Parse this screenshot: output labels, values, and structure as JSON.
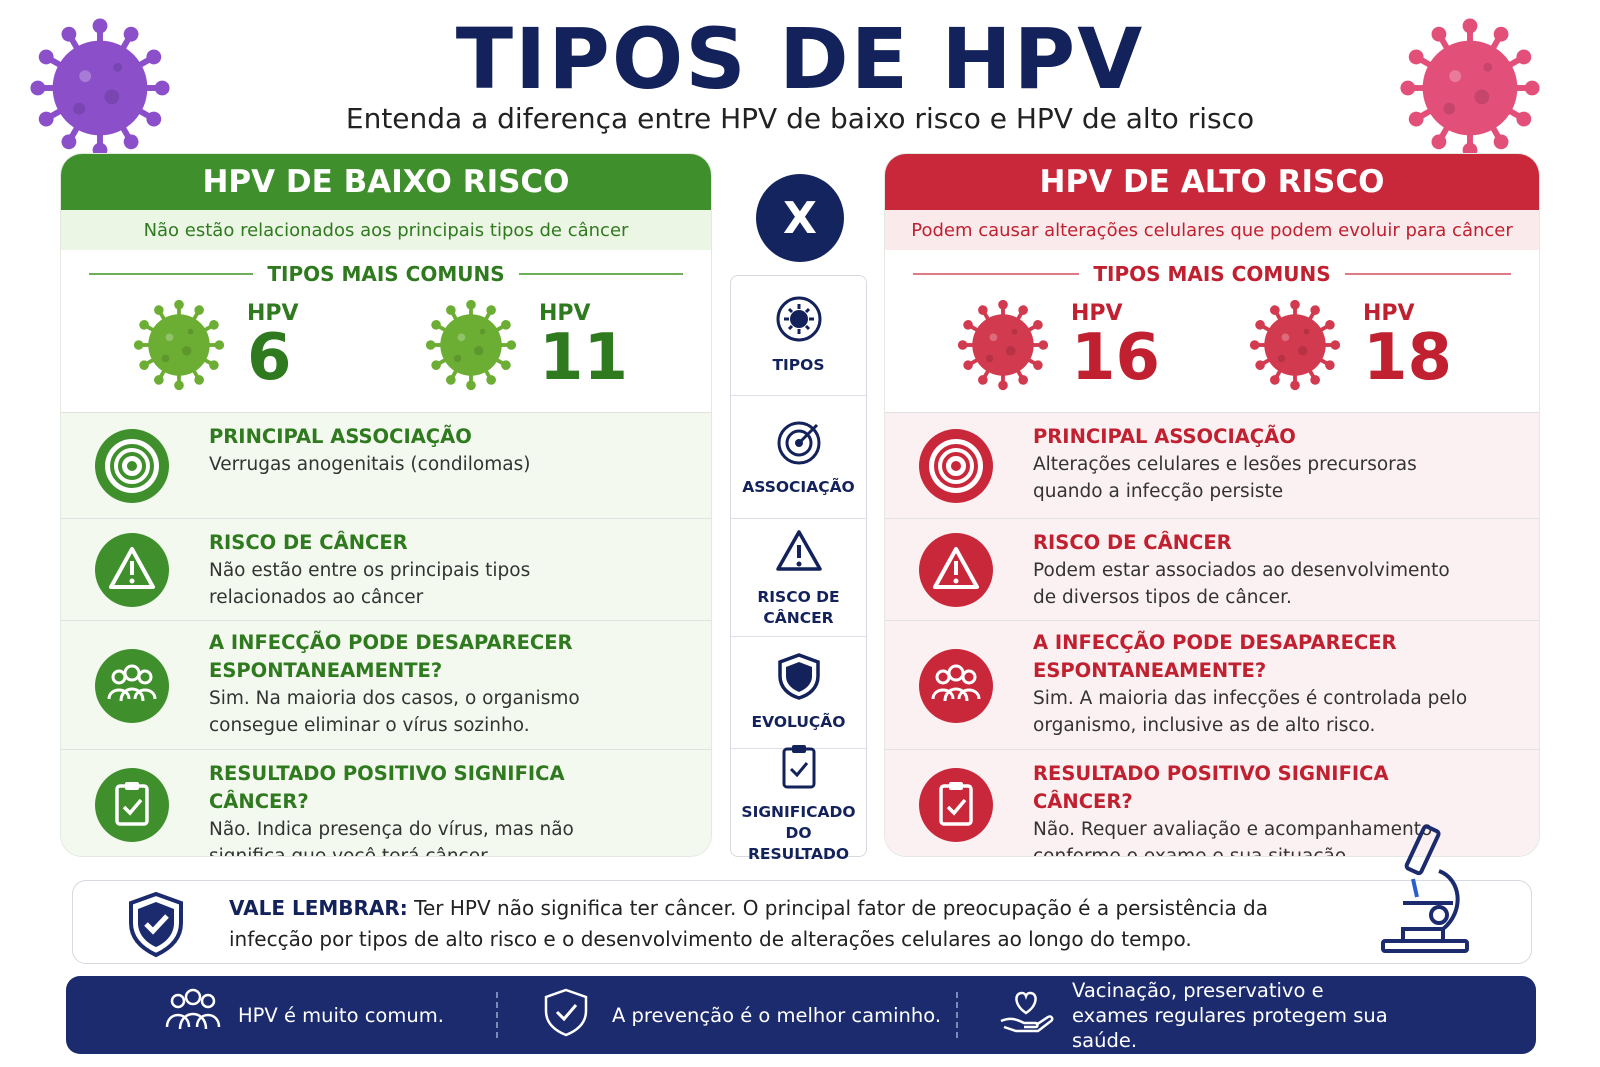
{
  "header": {
    "title": "TIPOS DE HPV",
    "subtitle": "Entenda a diferença entre HPV de baixo risco e HPV de alto risco"
  },
  "versus": "X",
  "low_risk": {
    "title": "HPV DE BAIXO RISCO",
    "subtitle": "Não estão relacionados aos principais tipos de câncer",
    "common_label": "TIPOS MAIS COMUNS",
    "types": [
      {
        "label": "HPV",
        "number": 6
      },
      {
        "label": "HPV",
        "number": 11
      }
    ],
    "rows": [
      {
        "title": "PRINCIPAL ASSOCIAÇÃO",
        "text": "Verrugas anogenitais (condilomas)"
      },
      {
        "title": "RISCO DE CÂNCER",
        "text": "Não estão entre os principais tipos relacionados ao câncer"
      },
      {
        "title": "A INFECÇÃO PODE DESAPARECER ESPONTANEAMENTE?",
        "text": "Sim. Na maioria dos casos, o organismo consegue eliminar o vírus sozinho."
      },
      {
        "title": "RESULTADO POSITIVO SIGNIFICA CÂNCER?",
        "text": "Não. Indica presença do vírus, mas não significa que você terá câncer."
      }
    ]
  },
  "high_risk": {
    "title": "HPV DE ALTO RISCO",
    "subtitle": "Podem causar alterações celulares que podem evoluir para câncer",
    "common_label": "TIPOS MAIS COMUNS",
    "types": [
      {
        "label": "HPV",
        "number": 16
      },
      {
        "label": "HPV",
        "number": 18
      }
    ],
    "rows": [
      {
        "title": "PRINCIPAL ASSOCIAÇÃO",
        "text": "Alterações celulares e lesões precursoras quando a infecção persiste"
      },
      {
        "title": "RISCO DE CÂNCER",
        "text": "Podem estar associados ao desenvolvimento de diversos tipos de câncer."
      },
      {
        "title": "A INFECÇÃO PODE DESAPARECER ESPONTANEAMENTE?",
        "text": "Sim. A maioria das infecções é controlada pelo organismo, inclusive as de alto risco."
      },
      {
        "title": "RESULTADO POSITIVO SIGNIFICA CÂNCER?",
        "text": "Não. Requer avaliação e acompanhamento conforme o exame e sua situação."
      }
    ]
  },
  "comparison": [
    "TIPOS",
    "ASSOCIAÇÃO",
    "RISCO DE CÂNCER",
    "EVOLUÇÃO",
    "SIGNIFICADO DO RESULTADO"
  ],
  "note": {
    "label": "VALE LEMBRAR:",
    "text": "Ter HPV não significa ter câncer. O principal fator de preocupação é a persistência da infecção por tipos de alto risco e o desenvolvimento de alterações celulares ao longo do tempo."
  },
  "footer": [
    "HPV é muito comum.",
    "A prevenção é o melhor caminho.",
    "Vacinação, preservativo e exames regulares protegem sua saúde."
  ]
}
